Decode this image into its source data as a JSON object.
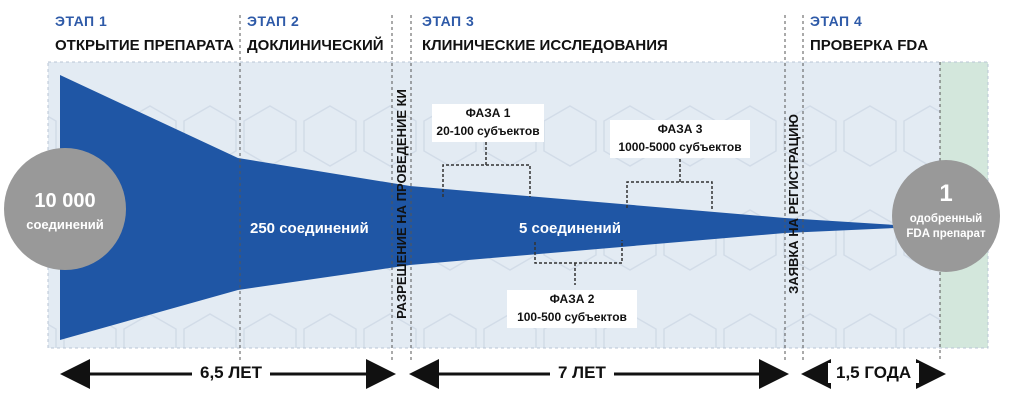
{
  "stages": [
    {
      "number": "ЭТАП 1",
      "title": "ОТКРЫТИЕ ПРЕПАРАТА"
    },
    {
      "number": "ЭТАП 2",
      "title": "ДОКЛИНИЧЕСКИЙ"
    },
    {
      "number": "ЭТАП 3",
      "title": "КЛИНИЧЕСКИЕ ИССЛЕДОВАНИЯ"
    },
    {
      "number": "ЭТАП 4",
      "title": "ПРОВЕРКА FDA"
    }
  ],
  "milestones": {
    "trial_permission": "РАЗРЕШЕНИЕ НА ПРОВЕДЕНИЕ КИ",
    "registration_application": "ЗАЯВКА НА РЕГИСТРАЦИЮ"
  },
  "start_circle": {
    "value": "10 000",
    "label": "соединений"
  },
  "end_circle": {
    "value": "1",
    "label": "одобренный FDA препарат"
  },
  "compounds": {
    "preclinical": "250 соединений",
    "clinical": "5 соединений"
  },
  "phases": [
    {
      "name": "ФАЗА 1",
      "subjects": "20-100 субъектов"
    },
    {
      "name": "ФАЗА 2",
      "subjects": "100-500 субъектов"
    },
    {
      "name": "ФАЗА 3",
      "subjects": "1000-5000 субъектов"
    }
  ],
  "durations": {
    "stage_1_2": "6,5 ЛЕТ",
    "stage_3": "7 ЛЕТ",
    "stage_4": "1,5 ГОДА"
  },
  "colors": {
    "funnel": "#1f56a5",
    "panel": "#e3ebf3",
    "approved_zone": "#d3e7dc",
    "circle": "#999999",
    "stage_number": "#2e5aa8"
  }
}
